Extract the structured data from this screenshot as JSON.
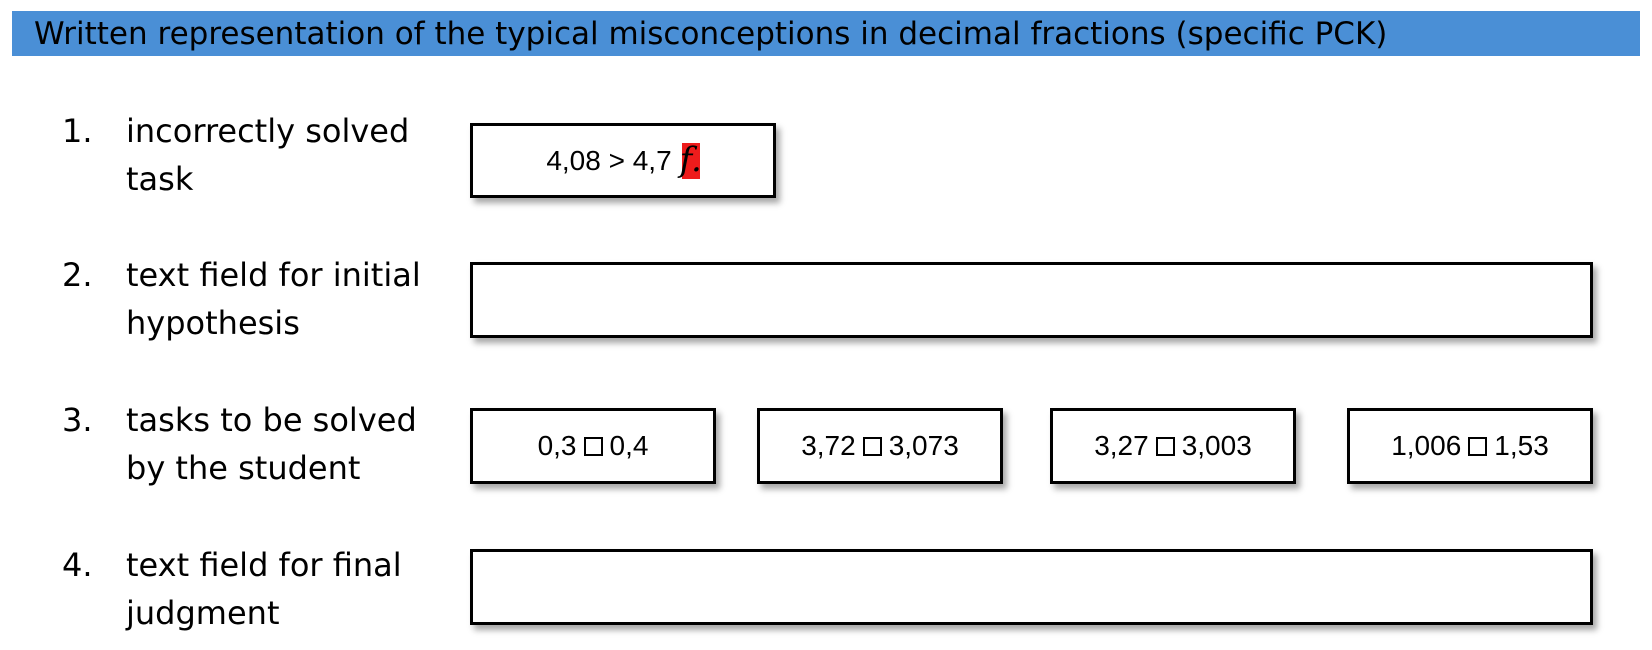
{
  "title": "Written representation of the typical misconceptions in decimal fractions (specific PCK)",
  "colors": {
    "title_bar": "#4a8fd6",
    "wrong_mark_background": "#ee1c1c",
    "box_border": "#000000"
  },
  "items": [
    {
      "number": "1.",
      "label_line1": "incorrectly solved",
      "label_line2": "task"
    },
    {
      "number": "2.",
      "label_line1": "text field for initial",
      "label_line2": "hypothesis"
    },
    {
      "number": "3.",
      "label_line1": "tasks to be solved",
      "label_line2": "by the student"
    },
    {
      "number": "4.",
      "label_line1": "text field for final",
      "label_line2": "judgment"
    }
  ],
  "incorrect_task": {
    "expression": "4,08 > 4,7",
    "mark": "f.",
    "mark_icon": "wrong-mark-icon"
  },
  "hypothesis_field": {
    "value": ""
  },
  "student_tasks": [
    {
      "left": "0,3",
      "right": "0,4"
    },
    {
      "left": "3,72",
      "right": "3,073"
    },
    {
      "left": "3,27",
      "right": "3,003"
    },
    {
      "left": "1,006",
      "right": "1,53"
    }
  ],
  "final_field": {
    "value": ""
  }
}
